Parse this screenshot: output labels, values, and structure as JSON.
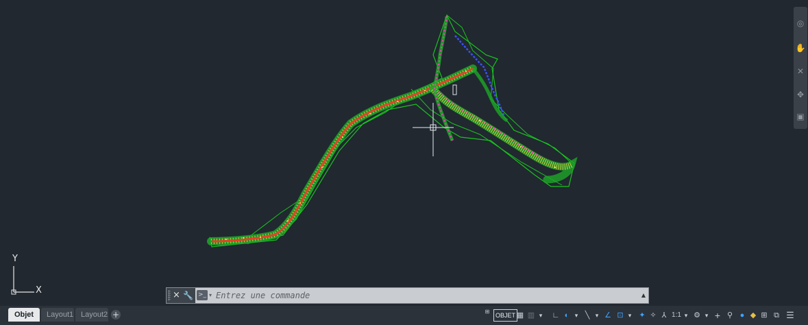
{
  "viewport": {
    "background": "#212830",
    "accent_colors": {
      "boundary": "#19c31e",
      "axis": "#e8402a",
      "points": "#e6d34a",
      "secondary": "#ff3cc4",
      "branch": "#3a52ff"
    }
  },
  "ucs": {
    "x_label": "X",
    "y_label": "Y"
  },
  "navbar": {
    "icons": [
      "steering-wheel-icon",
      "pan-icon",
      "zoom-icon",
      "orbit-icon",
      "showmotion-icon"
    ]
  },
  "command_line": {
    "close_symbol": "×",
    "placeholder": "Entrez une commande"
  },
  "layout_tabs": {
    "items": [
      "Objet",
      "Layout1",
      "Layout2"
    ],
    "add": "+"
  },
  "status_bar": {
    "objet_label": "OBJET",
    "scale_label": "1:1",
    "icons": [
      "coordinates-icon",
      "model-space-icon",
      "grid-icon",
      "snap-icon",
      "ortho-icon",
      "polar-icon",
      "isodraft-icon",
      "object-tracking-icon",
      "osnap-icon",
      "annotation-visibility-icon",
      "auto-scale-icon",
      "annotation-scale-icon",
      "workspace-gear-icon",
      "plus-icon",
      "units-icon",
      "isolate-icon",
      "hardware-acceleration-icon",
      "clean-screen-icon",
      "customize-icon"
    ]
  }
}
